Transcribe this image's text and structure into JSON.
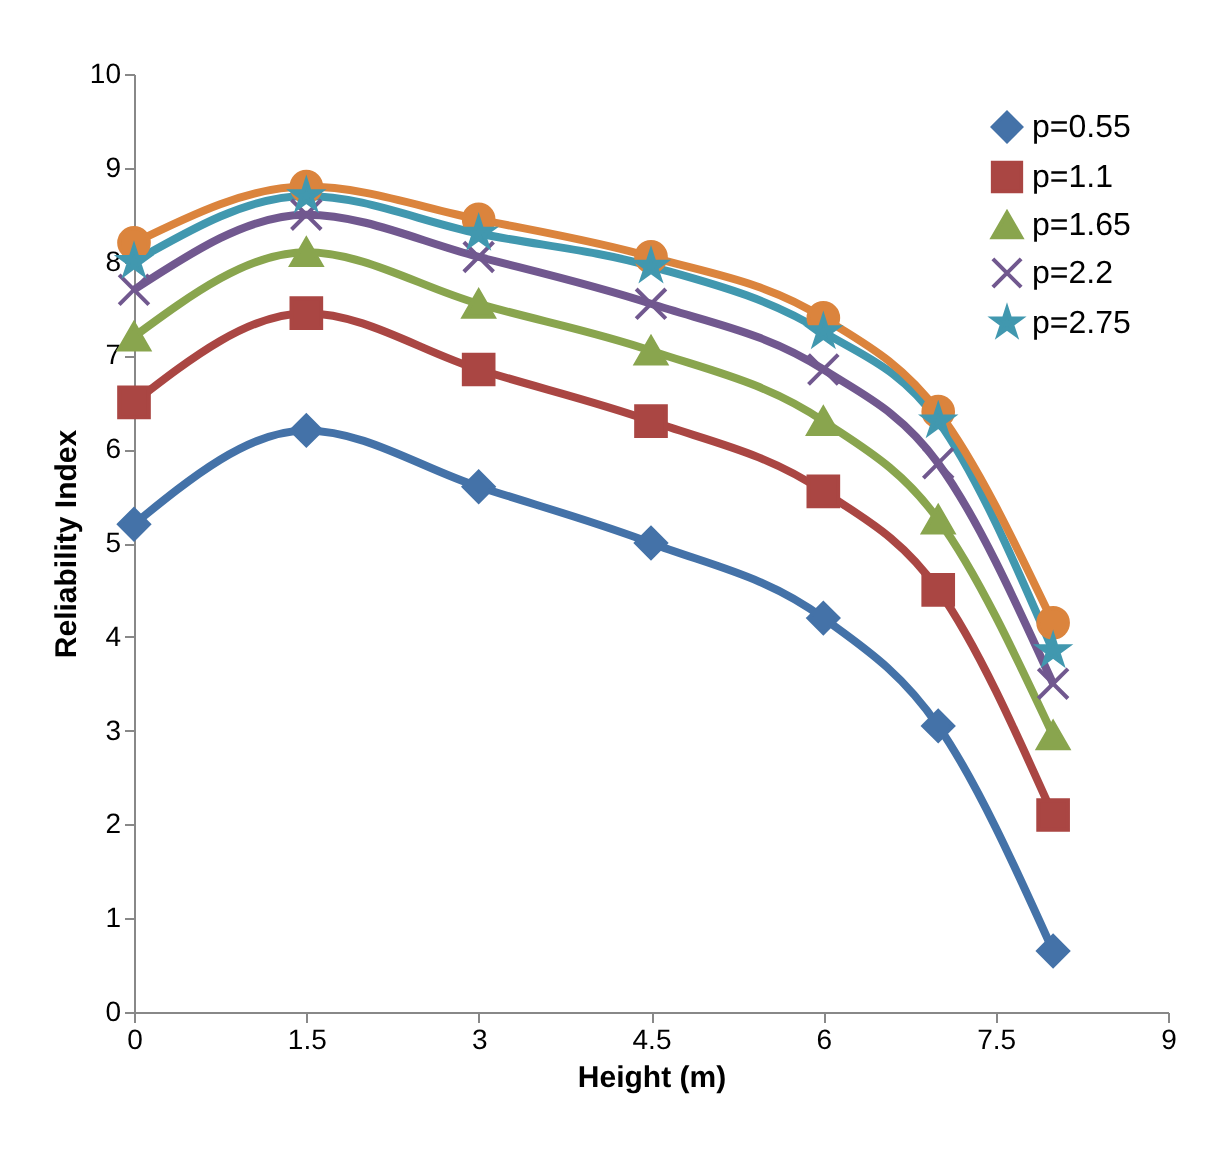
{
  "chart_data": {
    "type": "line",
    "xlabel": "Height (m)",
    "ylabel": "Reliability Index",
    "x": [
      0,
      1.5,
      3,
      4.5,
      6,
      7,
      8
    ],
    "xlim": [
      0,
      9
    ],
    "xticks": [
      0,
      1.5,
      3,
      4.5,
      6,
      7.5,
      9
    ],
    "ylim": [
      0,
      10
    ],
    "yticks": [
      0,
      1,
      2,
      3,
      4,
      5,
      6,
      7,
      8,
      9,
      10
    ],
    "grid": false,
    "legend": "top right",
    "line_style": "solid",
    "series": [
      {
        "name": "p=0.55",
        "color": "#4472a8",
        "marker": "diamond",
        "values": [
          5.2,
          6.2,
          5.6,
          5.0,
          4.2,
          3.05,
          0.65
        ]
      },
      {
        "name": "p=1.1",
        "color": "#aa4643",
        "marker": "square",
        "values": [
          6.5,
          7.45,
          6.85,
          6.3,
          5.55,
          4.5,
          2.1
        ]
      },
      {
        "name": "p=1.65",
        "color": "#89a54e",
        "marker": "triangle",
        "values": [
          7.2,
          8.1,
          7.55,
          7.05,
          6.3,
          5.25,
          2.95
        ]
      },
      {
        "name": "p=2.2",
        "color": "#71588f",
        "marker": "cross",
        "values": [
          7.7,
          8.5,
          8.05,
          7.55,
          6.85,
          5.85,
          3.5
        ]
      },
      {
        "name": "p=2.75",
        "color": "#4198af",
        "marker": "star",
        "values": [
          8.0,
          8.7,
          8.3,
          7.95,
          7.25,
          6.3,
          3.85
        ]
      },
      {
        "color": "#db843d",
        "marker": "circle",
        "values": [
          8.2,
          8.8,
          8.45,
          8.05,
          7.4,
          6.4,
          4.15
        ]
      }
    ]
  }
}
